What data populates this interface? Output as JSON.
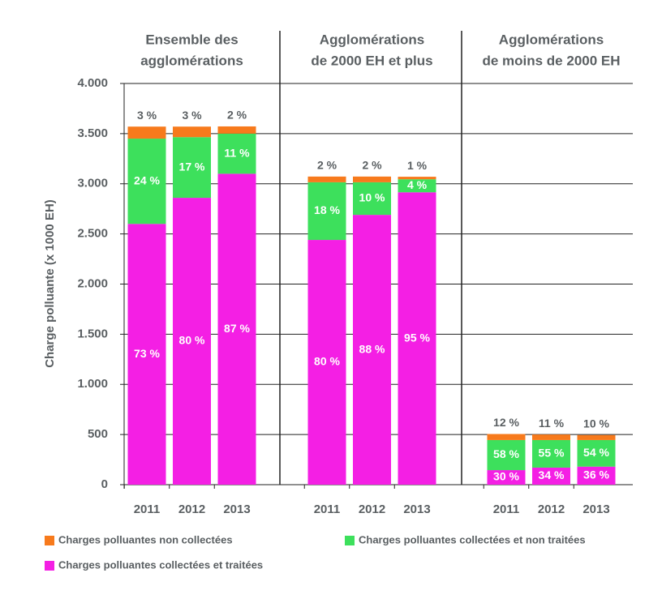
{
  "chart_data": {
    "type": "bar",
    "stacked": true,
    "y_label": "Charge polluante (x 1000 EH)",
    "groups": [
      {
        "title": [
          "Ensemble des",
          "agglomérations"
        ],
        "categories": [
          "2011",
          "2012",
          "2013"
        ]
      },
      {
        "title": [
          "Agglomérations",
          "de 2000 EH et plus"
        ],
        "categories": [
          "2011",
          "2012",
          "2013"
        ]
      },
      {
        "title": [
          "Agglomérations",
          "de moins de 2000 EH"
        ],
        "categories": [
          "2011",
          "2012",
          "2013"
        ]
      }
    ],
    "series": [
      {
        "name": "Charges polluantes collectées et traitées",
        "color": "#f41fe4",
        "values": [
          2600,
          2860,
          3100,
          2440,
          2690,
          2915,
          145,
          170,
          180
        ],
        "shares": [
          "73 %",
          "80 %",
          "87 %",
          "80 %",
          "88 %",
          "95 %",
          "30 %",
          "34 %",
          "36 %"
        ]
      },
      {
        "name": "Charges polluantes collectées et non traitées",
        "color": "#3de05c",
        "values": [
          850,
          605,
          400,
          575,
          325,
          130,
          300,
          275,
          265
        ],
        "shares": [
          "24 %",
          "17 %",
          "11 %",
          "18 %",
          "10 %",
          "4 %",
          "58 %",
          "55 %",
          "54 %"
        ]
      },
      {
        "name": "Charges polluantes non collectées",
        "color": "#f77a1c",
        "values": [
          120,
          105,
          72,
          57,
          57,
          25,
          60,
          55,
          50
        ],
        "shares": [
          "3 %",
          "3 %",
          "2 %",
          "2 %",
          "2 %",
          "1 %",
          "12 %",
          "11 %",
          "10 %"
        ]
      }
    ],
    "ylim": [
      0,
      4000
    ],
    "yticks": [
      0,
      500,
      {
        "value": 1000,
        "label": "1.000"
      },
      {
        "value": 1500,
        "label": "1.500"
      },
      {
        "value": 2000,
        "label": "2.000"
      },
      {
        "value": 2500,
        "label": "2.500"
      },
      {
        "value": 3000,
        "label": "3.000"
      },
      {
        "value": 3500,
        "label": "3.500"
      },
      {
        "value": 4000,
        "label": "4.000"
      }
    ],
    "grid": true
  }
}
